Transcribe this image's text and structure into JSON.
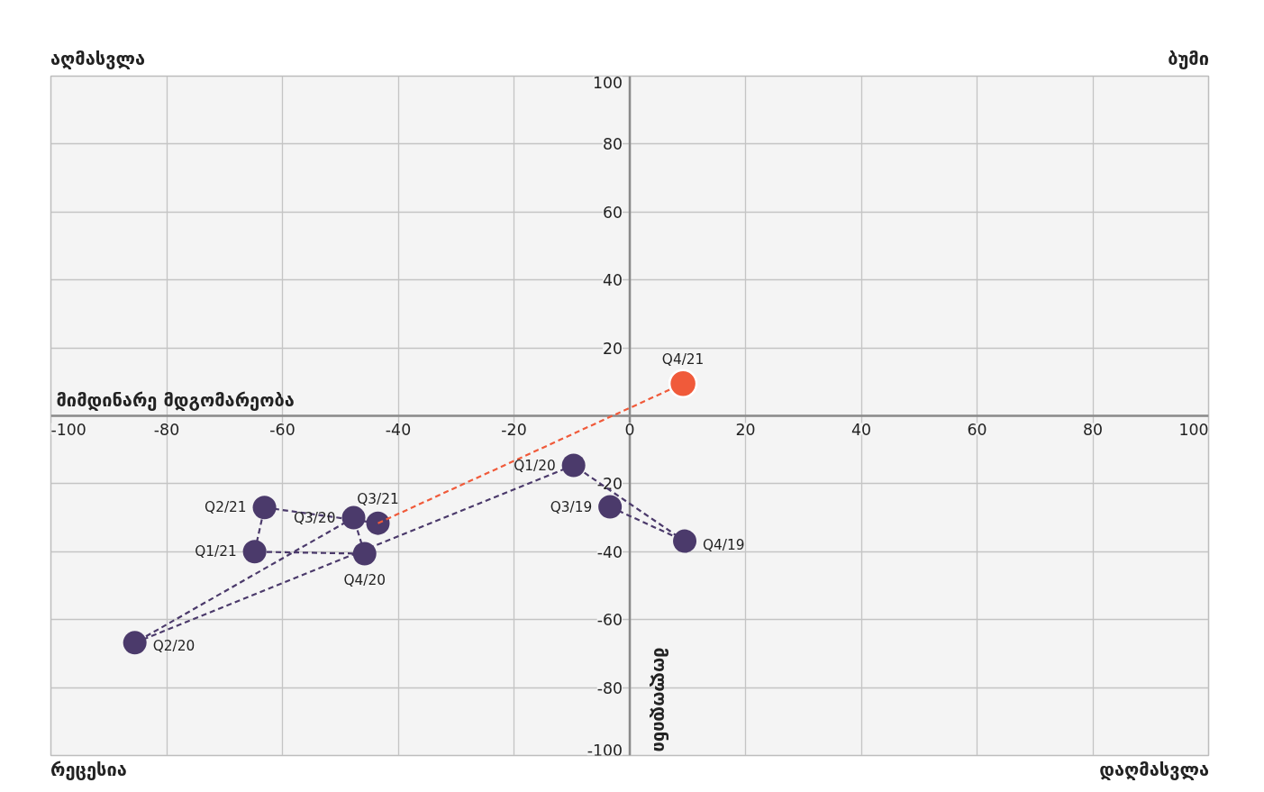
{
  "chart_data": {
    "type": "scatter",
    "xlabel": "მიმდინარე მდგომარეობა",
    "ylabel": "მოლოდინი",
    "annotations": [
      "აღმასვლა",
      "ბუმი",
      "რეცესია",
      "დაღმასვლა"
    ],
    "xlim": [
      -100,
      100
    ],
    "ylim": [
      -100,
      100
    ],
    "xticks": [
      -100,
      -80,
      -60,
      -40,
      -20,
      0,
      20,
      40,
      60,
      80,
      100
    ],
    "yticks": [
      -100,
      -80,
      -60,
      -40,
      -20,
      {
        "value": 0,
        "label": null
      },
      20,
      40,
      60,
      80,
      100
    ],
    "grid": true,
    "series": [
      {
        "type": "line",
        "color": "#4b3a6b",
        "line_style": "dashed",
        "marker": "circle",
        "x": [
          -3.4,
          9.5,
          -9.7,
          -85.5,
          -47.7,
          -45.8,
          -64.8,
          -63.1,
          -43.5
        ],
        "values": [
          -26.8,
          -36.9,
          -14.6,
          -66.8,
          -30.0,
          -40.6,
          -40.0,
          -27.0,
          -31.6
        ],
        "value_labels": [
          "Q3/19",
          "Q4/19",
          "Q1/20",
          "Q2/20",
          "Q3/20",
          "Q4/20",
          "Q1/21",
          "Q2/21",
          "Q3/21"
        ]
      },
      {
        "type": "line",
        "color": "#f05a3a",
        "line_style": "dashed",
        "marker": "none",
        "x": [
          -43.5,
          9.2
        ],
        "values": [
          -31.6,
          9.5
        ]
      },
      {
        "color": "#f05a3a",
        "marker": "circle",
        "x": [
          9.2
        ],
        "values": [
          9.5
        ],
        "value_labels": [
          "Q4/21"
        ]
      }
    ]
  }
}
